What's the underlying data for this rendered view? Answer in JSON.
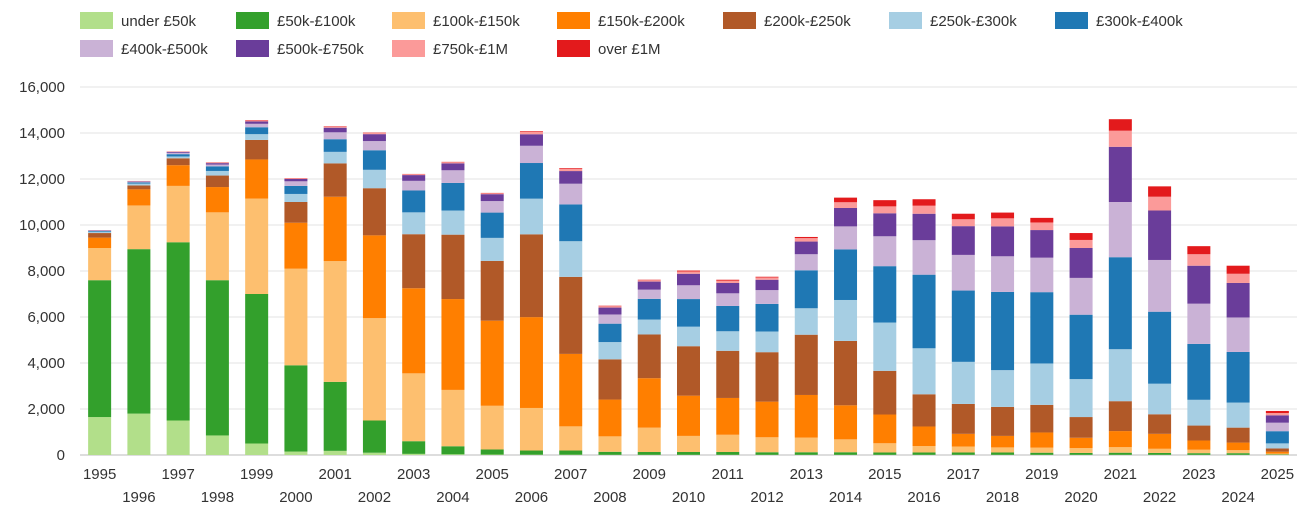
{
  "chart_data": {
    "type": "bar",
    "stacked": true,
    "title": "",
    "xlabel": "",
    "ylabel": "",
    "ylim": [
      0,
      16000
    ],
    "yticks": [
      0,
      2000,
      4000,
      6000,
      8000,
      10000,
      12000,
      14000,
      16000
    ],
    "ytick_labels": [
      "0",
      "2,000",
      "4,000",
      "6,000",
      "8,000",
      "10,000",
      "12,000",
      "14,000",
      "16,000"
    ],
    "grid": true,
    "legend_position": "top-left",
    "categories": [
      "1995",
      "1996",
      "1997",
      "1998",
      "1999",
      "2000",
      "2001",
      "2002",
      "2003",
      "2004",
      "2005",
      "2006",
      "2007",
      "2008",
      "2009",
      "2010",
      "2011",
      "2012",
      "2013",
      "2014",
      "2015",
      "2016",
      "2017",
      "2018",
      "2019",
      "2020",
      "2021",
      "2022",
      "2023",
      "2024",
      "2025"
    ],
    "series": [
      {
        "name": "under £50k",
        "color": "#b2df8a",
        "values": [
          1650,
          1800,
          1500,
          850,
          500,
          150,
          180,
          100,
          50,
          30,
          20,
          15,
          15,
          10,
          10,
          10,
          10,
          10,
          10,
          10,
          10,
          10,
          10,
          10,
          10,
          10,
          10,
          10,
          10,
          10,
          5
        ]
      },
      {
        "name": "£50k-£100k",
        "color": "#33a02c",
        "values": [
          5950,
          7150,
          7750,
          6750,
          6500,
          3750,
          3000,
          1400,
          550,
          350,
          220,
          180,
          180,
          130,
          120,
          120,
          120,
          110,
          110,
          110,
          100,
          100,
          100,
          100,
          90,
          80,
          90,
          80,
          70,
          70,
          20
        ]
      },
      {
        "name": "£100k-£150k",
        "color": "#fdbf6f",
        "values": [
          1400,
          1900,
          2450,
          2950,
          4150,
          4200,
          5250,
          4450,
          2950,
          2450,
          1900,
          1850,
          1050,
          670,
          1060,
          700,
          750,
          650,
          640,
          560,
          400,
          280,
          260,
          220,
          220,
          210,
          240,
          180,
          150,
          130,
          40
        ]
      },
      {
        "name": "£150k-£200k",
        "color": "#ff7f00",
        "values": [
          450,
          700,
          900,
          1100,
          1700,
          2000,
          2800,
          3600,
          3700,
          3950,
          3700,
          3950,
          3150,
          1600,
          2150,
          1750,
          1600,
          1550,
          1850,
          1480,
          1250,
          850,
          550,
          500,
          660,
          450,
          700,
          650,
          400,
          330,
          80
        ]
      },
      {
        "name": "£200k-£250k",
        "color": "#b15928",
        "values": [
          200,
          170,
          300,
          500,
          850,
          900,
          1450,
          2050,
          2350,
          2800,
          2600,
          3600,
          3350,
          1750,
          1900,
          2150,
          2050,
          2150,
          2620,
          2800,
          1900,
          1400,
          1300,
          1260,
          1200,
          900,
          1300,
          850,
          650,
          650,
          140
        ]
      },
      {
        "name": "£250k-£300k",
        "color": "#a6cee3",
        "values": [
          60,
          80,
          80,
          200,
          250,
          350,
          500,
          800,
          950,
          1050,
          1000,
          1550,
          1550,
          750,
          650,
          850,
          850,
          900,
          1150,
          1780,
          2100,
          2000,
          1830,
          1600,
          1800,
          1650,
          2260,
          1330,
          1120,
          1090,
          220
        ]
      },
      {
        "name": "£300k-£400k",
        "color": "#1f78b4",
        "values": [
          30,
          50,
          100,
          200,
          300,
          350,
          550,
          850,
          950,
          1200,
          1100,
          1550,
          1600,
          800,
          900,
          1200,
          1100,
          1200,
          1650,
          2200,
          2450,
          3200,
          3100,
          3400,
          3100,
          2800,
          4000,
          3130,
          2430,
          2200,
          530
        ]
      },
      {
        "name": "£400k-£500k",
        "color": "#cab2d6",
        "values": [
          20,
          30,
          60,
          80,
          150,
          200,
          300,
          400,
          420,
          550,
          500,
          750,
          900,
          400,
          400,
          600,
          550,
          600,
          700,
          1000,
          1300,
          1500,
          1550,
          1550,
          1500,
          1600,
          2400,
          2250,
          1750,
          1500,
          370
        ]
      },
      {
        "name": "£500k-£750k",
        "color": "#6a3d9a",
        "values": [
          15,
          20,
          40,
          60,
          100,
          100,
          200,
          300,
          250,
          300,
          300,
          500,
          550,
          300,
          350,
          500,
          450,
          450,
          550,
          800,
          1000,
          1150,
          1250,
          1300,
          1200,
          1300,
          2400,
          2150,
          1650,
          1500,
          320
        ]
      },
      {
        "name": "£750k-£1M",
        "color": "#fb9a99",
        "values": [
          5,
          10,
          15,
          25,
          50,
          30,
          50,
          50,
          40,
          50,
          40,
          100,
          100,
          60,
          60,
          100,
          100,
          100,
          150,
          250,
          300,
          350,
          300,
          350,
          330,
          350,
          700,
          600,
          500,
          400,
          100
        ]
      },
      {
        "name": "over £1M",
        "color": "#e31a1c",
        "values": [
          2,
          5,
          5,
          10,
          15,
          10,
          15,
          15,
          10,
          15,
          15,
          30,
          30,
          20,
          20,
          40,
          40,
          30,
          50,
          200,
          270,
          280,
          240,
          250,
          200,
          300,
          500,
          450,
          350,
          350,
          90
        ]
      }
    ]
  }
}
